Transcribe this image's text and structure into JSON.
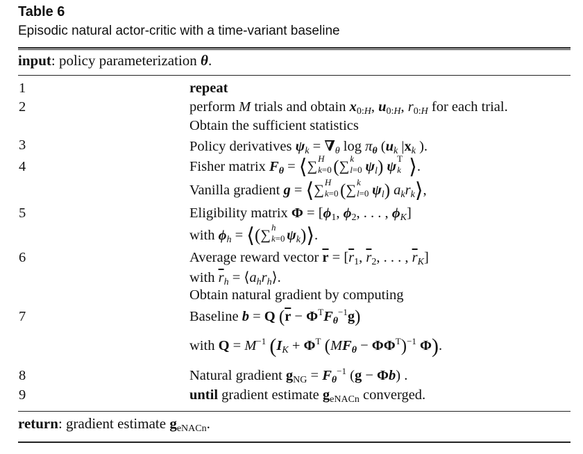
{
  "header": {
    "table_label": "Table 6",
    "caption": "Episodic natural actor-critic with a time-variant baseline"
  },
  "input_line": {
    "keyword": "input",
    "text": ": policy parameterization θ."
  },
  "steps": [
    {
      "num": "1",
      "text": "repeat"
    },
    {
      "num": "2",
      "text": "perform M trials and obtain x0:H, u0:H, r0:H for each trial."
    },
    {
      "num": "",
      "text": "Obtain the sufficient statistics"
    },
    {
      "num": "3",
      "text": "Policy derivatives ψk = ∇θ log πθ (uk |xk )."
    },
    {
      "num": "4",
      "text": "Fisher matrix Fθ = ⟨∑Hk=0 (∑kl=0 ψl) ψTk⟩."
    },
    {
      "num": "",
      "text": "Vanilla gradient g = ⟨∑Hk=0 (∑kl=0 ψl) akrk⟩,"
    },
    {
      "num": "5",
      "text": "Eligibility matrix Φ = [ϕ1, ϕ2, . . . , ϕK]"
    },
    {
      "num": "",
      "text": "with ϕh = ⟨(∑hk=0 ψk)⟩."
    },
    {
      "num": "6",
      "text": "Average reward vector r̄ = [r̄1, r̄2, . . . , r̄K]"
    },
    {
      "num": "",
      "text": "with r̄h = ⟨ahrh⟩."
    },
    {
      "num": "",
      "text": "Obtain natural gradient by computing"
    },
    {
      "num": "7",
      "text": "Baseline b = Q (r̄ − ΦTFθ−1g)"
    },
    {
      "num": "",
      "text": "with Q = M−1 (IK + ΦT (MFθ − ΦΦT)−1 Φ)."
    },
    {
      "num": "8",
      "text": "Natural gradient gNG = Fθ−1 (g − Φb) ."
    },
    {
      "num": "9",
      "text": "until gradient estimate geNACn converged."
    }
  ],
  "return_line": {
    "keyword": "return",
    "text": ": gradient estimate geNACn."
  }
}
